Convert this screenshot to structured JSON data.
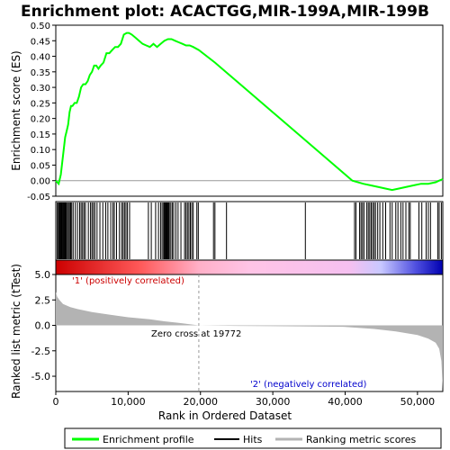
{
  "chart_data": {
    "type": "line",
    "title": "Enrichment plot: ACACTGG,MIR-199A,MIR-199B",
    "top_panel": {
      "ylabel": "Enrichment score (ES)",
      "ylim": [
        -0.05,
        0.5
      ],
      "yticks": [
        "-0.05",
        "0.00",
        "0.05",
        "0.10",
        "0.15",
        "0.20",
        "0.25",
        "0.30",
        "0.35",
        "0.40",
        "0.45",
        "0.50"
      ],
      "series": [
        {
          "name": "Enrichment profile",
          "color": "#00ff00",
          "x": [
            0,
            400,
            700,
            900,
            1100,
            1300,
            1500,
            1700,
            1900,
            2100,
            2300,
            2600,
            2900,
            3200,
            3500,
            3800,
            4100,
            4400,
            4700,
            5000,
            5300,
            5600,
            5900,
            6200,
            6600,
            7000,
            7400,
            7800,
            8200,
            8600,
            9000,
            9400,
            9800,
            10100,
            10500,
            11000,
            11500,
            12000,
            12500,
            13000,
            13500,
            14000,
            14500,
            15000,
            15500,
            16000,
            16500,
            17000,
            17500,
            18000,
            18500,
            19000,
            19772,
            22000,
            26000,
            30000,
            34000,
            38000,
            41000,
            42500,
            43500,
            44500,
            45500,
            46500,
            47500,
            48500,
            49500,
            50500,
            51500,
            52500,
            53000,
            53500
          ],
          "y": [
            0.0,
            -0.01,
            0.02,
            0.06,
            0.1,
            0.14,
            0.16,
            0.18,
            0.22,
            0.24,
            0.24,
            0.25,
            0.25,
            0.27,
            0.3,
            0.31,
            0.31,
            0.32,
            0.34,
            0.35,
            0.37,
            0.37,
            0.36,
            0.37,
            0.38,
            0.41,
            0.41,
            0.42,
            0.43,
            0.43,
            0.44,
            0.47,
            0.475,
            0.475,
            0.47,
            0.46,
            0.45,
            0.44,
            0.435,
            0.43,
            0.44,
            0.43,
            0.44,
            0.45,
            0.455,
            0.455,
            0.45,
            0.445,
            0.44,
            0.435,
            0.435,
            0.43,
            0.42,
            0.38,
            0.3,
            0.22,
            0.14,
            0.06,
            0.0,
            -0.01,
            -0.015,
            -0.02,
            -0.025,
            -0.03,
            -0.025,
            -0.02,
            -0.015,
            -0.01,
            -0.01,
            -0.005,
            0.0,
            0.005
          ]
        }
      ]
    },
    "hits": {
      "name": "Hits",
      "positions": [
        200,
        350,
        450,
        550,
        650,
        750,
        850,
        950,
        1050,
        1150,
        1250,
        1350,
        1450,
        1600,
        1750,
        1900,
        2050,
        2200,
        2400,
        2700,
        3000,
        3300,
        3500,
        3700,
        3900,
        4100,
        4500,
        4800,
        5000,
        5200,
        5400,
        5700,
        6100,
        6500,
        6900,
        7200,
        7600,
        7900,
        8100,
        8400,
        8800,
        9100,
        9300,
        9500,
        9700,
        9900,
        10200,
        12800,
        13200,
        13800,
        14200,
        14500,
        14700,
        14900,
        15000,
        15100,
        15200,
        15300,
        15400,
        15500,
        15600,
        15700,
        15900,
        16100,
        16300,
        16600,
        16900,
        17300,
        17800,
        18000,
        18200,
        18400,
        18600,
        18800,
        19000,
        19500,
        19700,
        21800,
        22000,
        23600,
        34500,
        41300,
        41500,
        42000,
        42200,
        42400,
        42600,
        43000,
        43200,
        43400,
        43600,
        43800,
        44000,
        44200,
        44500,
        44800,
        45200,
        45600,
        46200,
        46500,
        47000,
        47300,
        47700,
        48000,
        48400,
        48800,
        49000,
        50200,
        50600,
        51200,
        51500,
        51800,
        52800,
        53000,
        53300
      ]
    },
    "bottom_panel": {
      "ylabel": "Ranked list metric (tTest)",
      "xlabel": "Rank in Ordered Dataset",
      "ylim": [
        -6.5,
        5.0
      ],
      "yticks": [
        "-5.0",
        "-2.5",
        "0.0",
        "2.5",
        "5.0"
      ],
      "xlim": [
        0,
        53500
      ],
      "xticks": [
        "0",
        "10,000",
        "20,000",
        "30,000",
        "40,000",
        "50,000"
      ],
      "series": [
        {
          "name": "Ranking metric scores",
          "color": "#b3b3b3",
          "x": [
            0,
            200,
            500,
            1000,
            2000,
            3000,
            5000,
            7000,
            10000,
            13000,
            15000,
            17000,
            19772,
            25000,
            30000,
            35000,
            40000,
            44000,
            47000,
            50000,
            51500,
            52500,
            53000,
            53300,
            53500
          ],
          "y": [
            3.3,
            2.8,
            2.5,
            2.1,
            1.8,
            1.6,
            1.3,
            1.1,
            0.8,
            0.6,
            0.4,
            0.25,
            0.0,
            -0.05,
            -0.08,
            -0.1,
            -0.15,
            -0.35,
            -0.6,
            -0.95,
            -1.3,
            -1.7,
            -2.3,
            -3.5,
            -6.3
          ]
        }
      ],
      "annotations": [
        {
          "text": "'1' (positively correlated)",
          "color": "#cc0000"
        },
        {
          "text": "Zero cross at 19772",
          "color": "#000000"
        },
        {
          "text": "'2' (negatively correlated)",
          "color": "#0000cc"
        }
      ],
      "zero_cross": 19772
    },
    "legend": {
      "placement": "bottom",
      "items": [
        {
          "label": "Enrichment profile",
          "color": "#00ff00"
        },
        {
          "label": "Hits",
          "color": "#000000"
        },
        {
          "label": "Ranking metric scores",
          "color": "#b3b3b3"
        }
      ]
    }
  }
}
